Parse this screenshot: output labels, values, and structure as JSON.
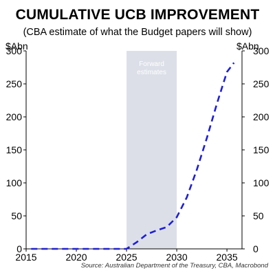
{
  "chart_data": {
    "type": "line",
    "title": "CUMULATIVE UCB IMPROVEMENT",
    "subtitle": "(CBA estimate of what the Budget papers will show)",
    "ylabel_left": "$Abn",
    "ylabel_right": "$Abn",
    "xlim": [
      2015,
      2036.5
    ],
    "ylim": [
      0,
      300
    ],
    "x_ticks": [
      2015,
      2020,
      2025,
      2030,
      2035
    ],
    "y_ticks": [
      0,
      50,
      100,
      150,
      200,
      250,
      300
    ],
    "grid": false,
    "shaded_region": {
      "label_line1": "Forward",
      "label_line2": "estimates",
      "x_start": 2025,
      "x_end": 2030,
      "color": "#dcdfe8"
    },
    "series": [
      {
        "color": "#1f1fd6",
        "x": [
          2015.5,
          2016,
          2017,
          2018,
          2019,
          2020,
          2021,
          2022,
          2023,
          2024,
          2024.5,
          2025,
          2026,
          2027,
          2028,
          2029,
          2030,
          2031,
          2032,
          2033,
          2034,
          2035,
          2035.7
        ],
        "y": [
          0,
          0,
          0,
          0,
          0,
          0,
          0,
          0,
          0,
          0,
          0,
          0,
          10,
          22,
          28,
          33,
          48,
          78,
          120,
          168,
          220,
          268,
          282
        ]
      }
    ],
    "source": "Source: Australian Department of the Treasury, CBA, Macrobond"
  }
}
